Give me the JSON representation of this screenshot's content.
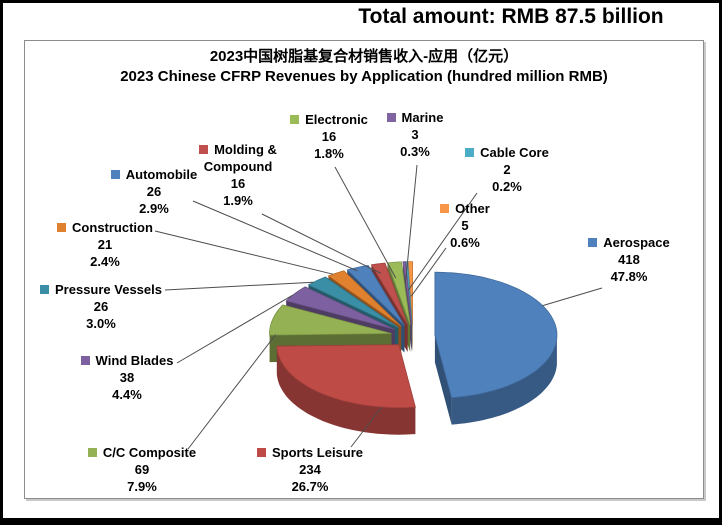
{
  "page": {
    "main_title": "Total amount: RMB 87.5 billion"
  },
  "chart": {
    "title_zh": "2023中国树脂基复合材销售收入-应用（亿元）",
    "title_en": "2023 Chinese CFRP Revenues by Application (hundred million RMB)"
  },
  "chart_data": {
    "type": "pie",
    "style": "3d-exploded",
    "title": "2023中国树脂基复合材销售收入-应用（亿元）",
    "subtitle": "2023 Chinese CFRP Revenues by Application (hundred million RMB)",
    "total_label": "Total amount: RMB 87.5 billion",
    "unit": "hundred million RMB",
    "legend_position": "around-labels",
    "slices": [
      {
        "name": "Aerospace",
        "value": 418,
        "pct": "47.8%",
        "color": "#4F81BD"
      },
      {
        "name": "Sports Leisure",
        "value": 234,
        "pct": "26.7%",
        "color": "#BF4B47"
      },
      {
        "name": "C/C Composite",
        "value": 69,
        "pct": "7.9%",
        "color": "#94B253"
      },
      {
        "name": "Wind Blades",
        "value": 38,
        "pct": "4.4%",
        "color": "#7D60A0"
      },
      {
        "name": "Pressure Vessels",
        "value": 26,
        "pct": "3.0%",
        "color": "#3A8FA6"
      },
      {
        "name": "Construction",
        "value": 21,
        "pct": "2.4%",
        "color": "#E0812F"
      },
      {
        "name": "Automobile",
        "value": 26,
        "pct": "2.9%",
        "color": "#4F81BD"
      },
      {
        "name": "Molding & Compound",
        "value": 16,
        "pct": "1.9%",
        "color": "#C0504D"
      },
      {
        "name": "Electronic",
        "value": 16,
        "pct": "1.8%",
        "color": "#9BBB59"
      },
      {
        "name": "Marine",
        "value": 3,
        "pct": "0.3%",
        "color": "#8064A2"
      },
      {
        "name": "Cable Core",
        "value": 2,
        "pct": "0.2%",
        "color": "#4BACC6"
      },
      {
        "name": "Other",
        "value": 5,
        "pct": "0.6%",
        "color": "#F79646"
      }
    ]
  }
}
